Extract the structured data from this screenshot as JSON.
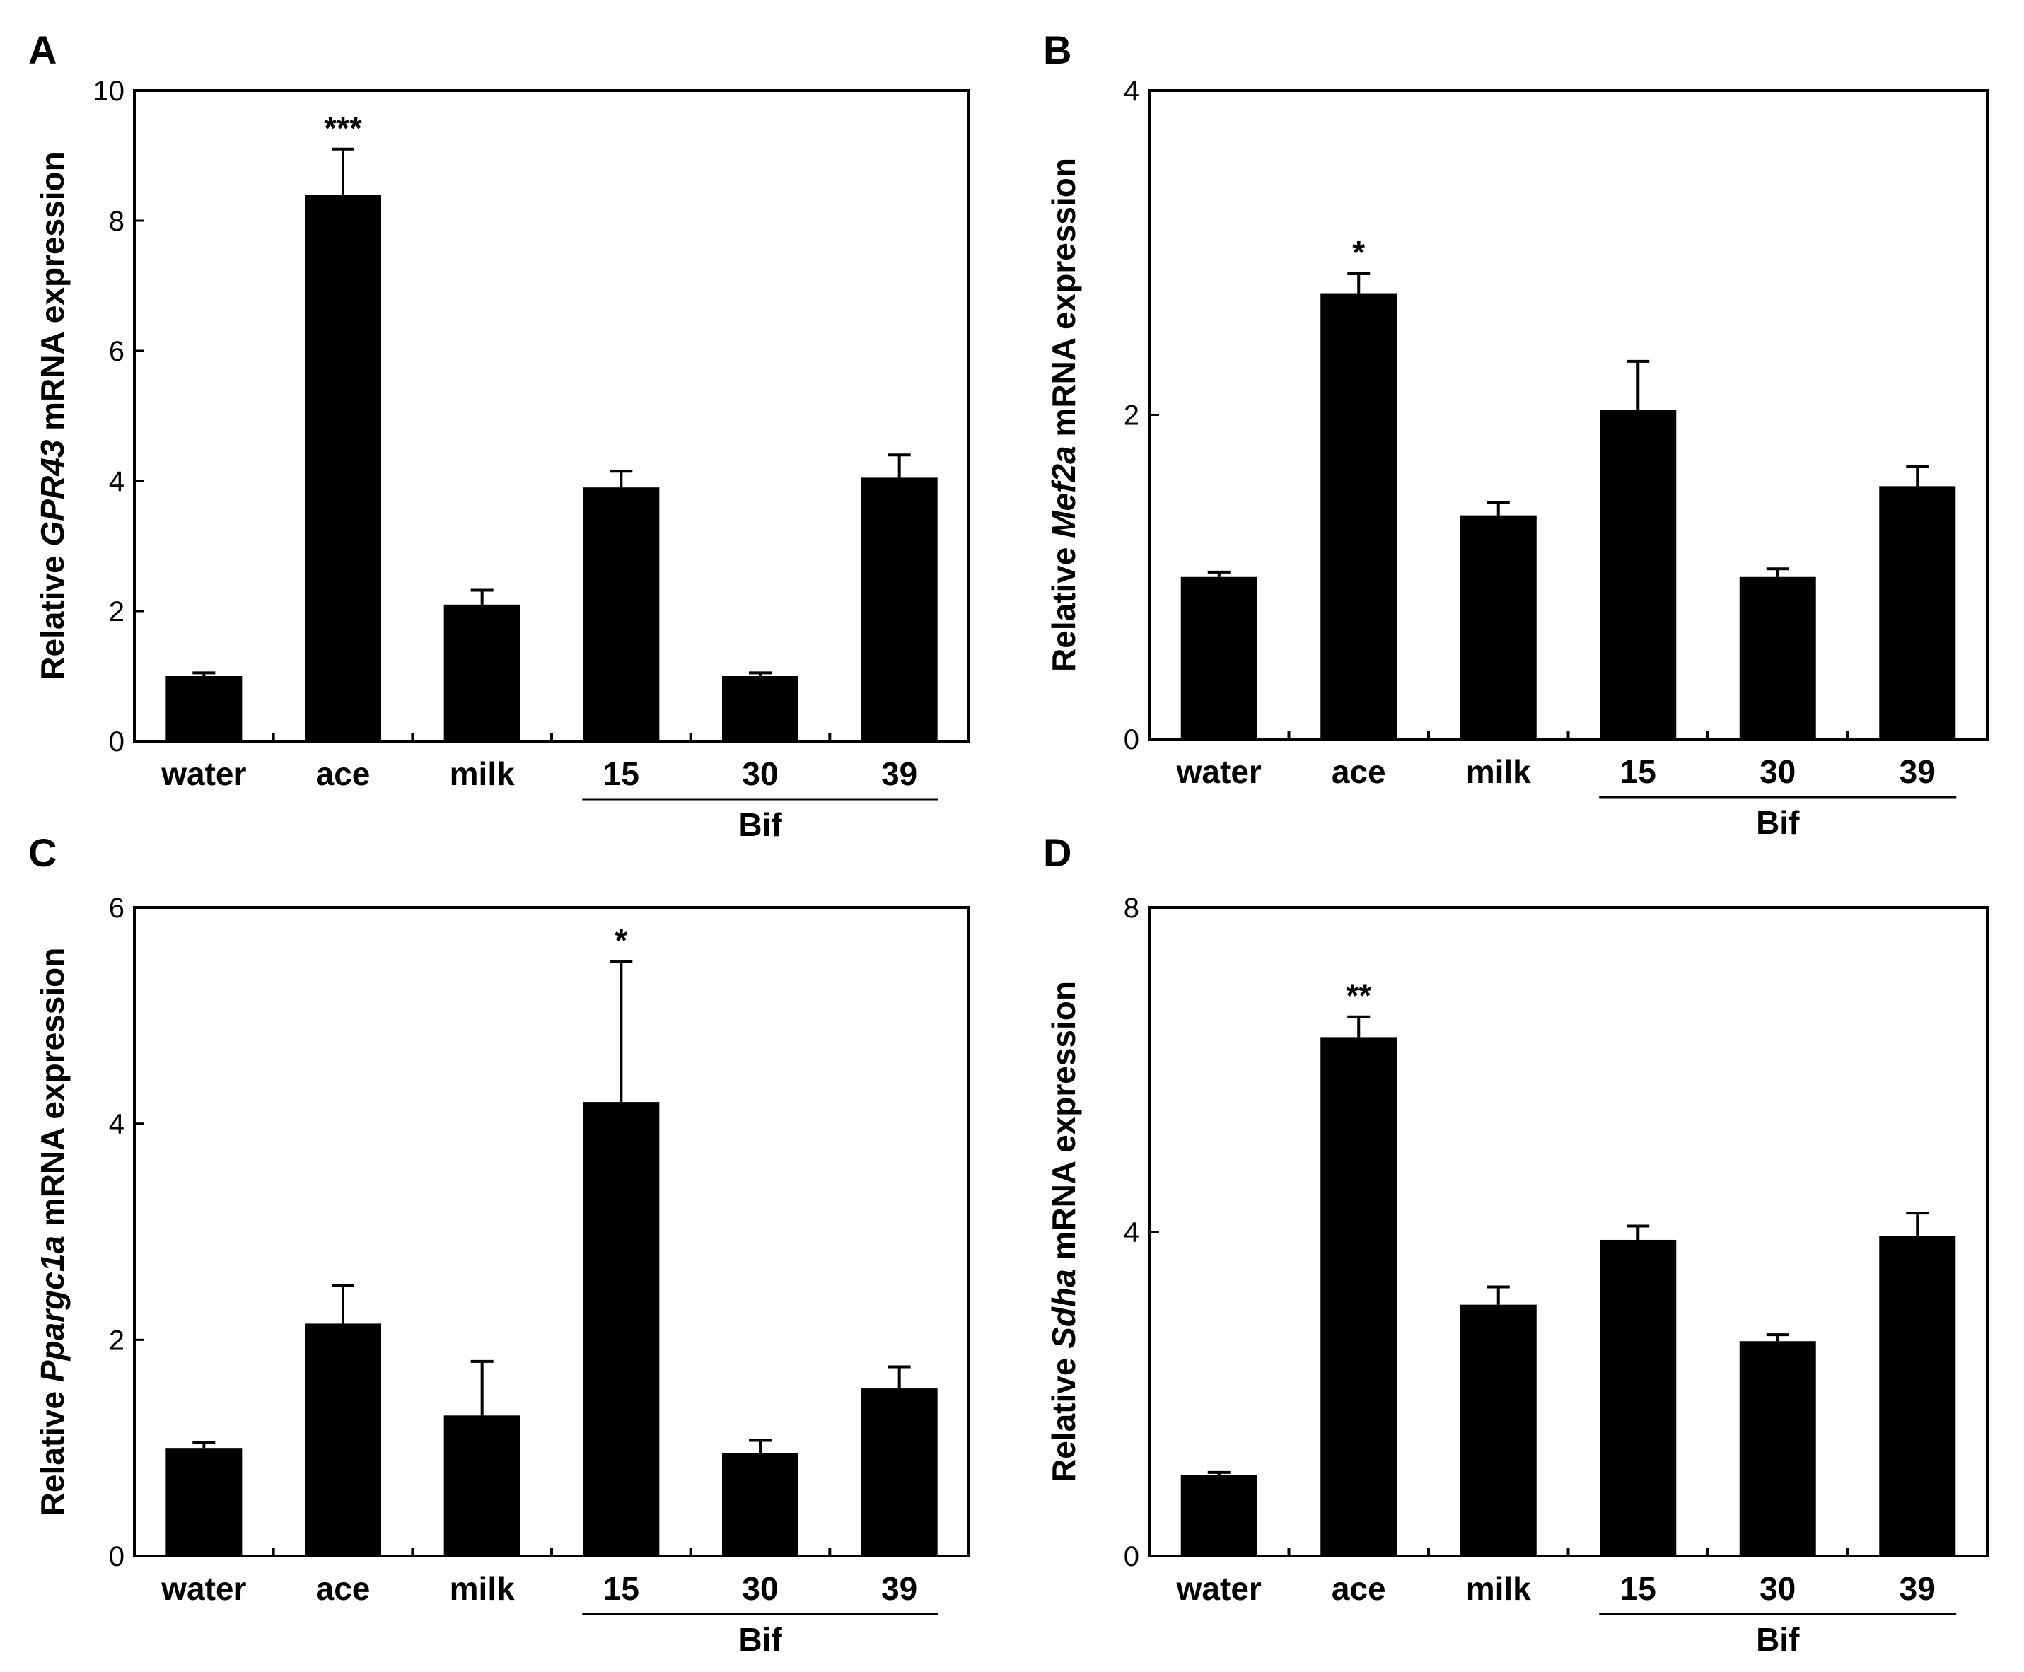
{
  "colors": {
    "bar": "#000000",
    "frame": "#000000",
    "background": "#ffffff"
  },
  "chart_data": [
    {
      "panel": "A",
      "type": "bar",
      "categories": [
        "water",
        "ace",
        "milk",
        "15",
        "30",
        "39"
      ],
      "values": [
        1.0,
        8.4,
        2.1,
        3.9,
        1.0,
        4.05
      ],
      "errors": [
        0.05,
        0.7,
        0.22,
        0.25,
        0.05,
        0.35
      ],
      "significance": [
        "",
        "***",
        "",
        "",
        "",
        ""
      ],
      "group": {
        "label": "Bif",
        "members": [
          "15",
          "30",
          "39"
        ]
      },
      "ylabel_prefix": "Relative ",
      "ylabel_gene": "GPR43",
      "ylabel_suffix": " mRNA expression",
      "ylim": [
        0,
        10
      ],
      "yticks": [
        0,
        2,
        4,
        6,
        8,
        10
      ]
    },
    {
      "panel": "B",
      "type": "bar",
      "categories": [
        "water",
        "ace",
        "milk",
        "15",
        "30",
        "39"
      ],
      "values": [
        1.0,
        2.75,
        1.38,
        2.03,
        1.0,
        1.56
      ],
      "errors": [
        0.03,
        0.12,
        0.08,
        0.3,
        0.05,
        0.12
      ],
      "significance": [
        "",
        "*",
        "",
        "",
        "",
        ""
      ],
      "group": {
        "label": "Bif",
        "members": [
          "15",
          "30",
          "39"
        ]
      },
      "ylabel_prefix": "Relative ",
      "ylabel_gene": "Mef2a",
      "ylabel_suffix": " mRNA expression",
      "ylim": [
        0,
        4
      ],
      "yticks": [
        0,
        2,
        4
      ]
    },
    {
      "panel": "C",
      "type": "bar",
      "categories": [
        "water",
        "ace",
        "milk",
        "15",
        "30",
        "39"
      ],
      "values": [
        1.0,
        2.15,
        1.3,
        4.2,
        0.95,
        1.55
      ],
      "errors": [
        0.05,
        0.35,
        0.5,
        1.3,
        0.12,
        0.2
      ],
      "significance": [
        "",
        "",
        "",
        "*",
        "",
        ""
      ],
      "group": {
        "label": "Bif",
        "members": [
          "15",
          "30",
          "39"
        ]
      },
      "ylabel_prefix": "Relative ",
      "ylabel_gene": "Ppargc1a",
      "ylabel_suffix": " mRNA expression",
      "ylim": [
        0,
        6
      ],
      "yticks": [
        0,
        2,
        4,
        6
      ]
    },
    {
      "panel": "D",
      "type": "bar",
      "categories": [
        "water",
        "ace",
        "milk",
        "15",
        "30",
        "39"
      ],
      "values": [
        1.0,
        6.4,
        3.1,
        3.9,
        2.65,
        3.95
      ],
      "errors": [
        0.03,
        0.25,
        0.22,
        0.17,
        0.08,
        0.28
      ],
      "significance": [
        "",
        "**",
        "",
        "",
        "",
        ""
      ],
      "group": {
        "label": "Bif",
        "members": [
          "15",
          "30",
          "39"
        ]
      },
      "ylabel_prefix": "Relative ",
      "ylabel_gene": "Sdha",
      "ylabel_suffix": " mRNA expression",
      "ylim": [
        0,
        8
      ],
      "yticks": [
        0,
        4,
        8
      ]
    }
  ]
}
